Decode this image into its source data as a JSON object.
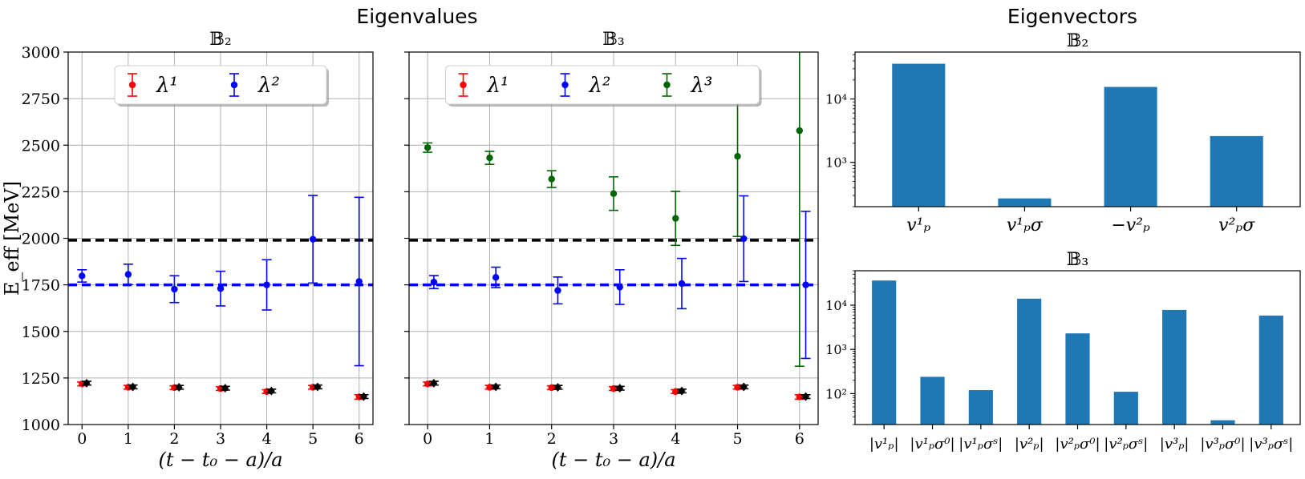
{
  "headings": {
    "left": "Eigenvalues",
    "right": "Eigenvectors"
  },
  "chart_data": [
    {
      "id": "eigenvalues-b2",
      "type": "scatter",
      "title": "𝔹₂",
      "xlabel": "(t − t₀ − a)/a",
      "ylabel": "E_eff [MeV]",
      "xlim": [
        -0.3,
        6.3
      ],
      "ylim": [
        1000,
        3000
      ],
      "x_ticks": [
        0,
        1,
        2,
        3,
        4,
        5,
        6
      ],
      "y_ticks": [
        1000,
        1250,
        1500,
        1750,
        2000,
        2250,
        2500,
        2750,
        3000
      ],
      "grid": true,
      "legend": {
        "placement": "top-center",
        "columns": 2
      },
      "series": [
        {
          "name": "λ¹",
          "color": "#ff0000",
          "x": [
            0,
            1,
            2,
            3,
            4,
            5,
            6
          ],
          "y": [
            1218,
            1200,
            1198,
            1193,
            1177,
            1200,
            1148
          ],
          "err": [
            10,
            10,
            10,
            10,
            10,
            10,
            12
          ]
        },
        {
          "name": "λ²",
          "color": "#0000ff",
          "x": [
            0,
            1,
            2,
            3,
            4,
            5,
            6
          ],
          "y": [
            1798,
            1806,
            1727,
            1730,
            1750,
            1995,
            1768
          ],
          "err": [
            33,
            55,
            72,
            93,
            135,
            235,
            452
          ]
        },
        {
          "color": "#000000",
          "x": [
            0.1,
            1.1,
            2.1,
            3.1,
            4.1,
            5.1,
            6.1
          ],
          "y": [
            1222,
            1202,
            1200,
            1195,
            1180,
            1202,
            1150
          ],
          "err": [
            10,
            10,
            10,
            10,
            10,
            10,
            10
          ]
        }
      ],
      "hlines": [
        {
          "y": 1990,
          "color": "#000000"
        },
        {
          "y": 1750,
          "color": "#0000ff"
        }
      ]
    },
    {
      "id": "eigenvalues-b3",
      "type": "scatter",
      "title": "𝔹₃",
      "xlabel": "(t − t₀ − a)/a",
      "xlim": [
        -0.3,
        6.3
      ],
      "ylim": [
        1000,
        3000
      ],
      "x_ticks": [
        0,
        1,
        2,
        3,
        4,
        5,
        6
      ],
      "y_ticks": [
        1000,
        1250,
        1500,
        1750,
        2000,
        2250,
        2500,
        2750,
        3000
      ],
      "grid": true,
      "legend": {
        "placement": "top-center",
        "columns": 3
      },
      "series": [
        {
          "name": "λ¹",
          "color": "#ff0000",
          "x": [
            0,
            1,
            2,
            3,
            4,
            5,
            6
          ],
          "y": [
            1218,
            1200,
            1198,
            1193,
            1177,
            1200,
            1148
          ],
          "err": [
            10,
            10,
            10,
            10,
            10,
            10,
            12
          ]
        },
        {
          "name": "λ²",
          "color": "#0000ff",
          "x": [
            0.1,
            1.1,
            2.1,
            3.1,
            4.1,
            5.1,
            6.1
          ],
          "y": [
            1765,
            1790,
            1720,
            1738,
            1757,
            1998,
            1750
          ],
          "err": [
            35,
            55,
            72,
            93,
            135,
            230,
            395
          ]
        },
        {
          "name": "λ³",
          "color": "#006400",
          "x": [
            0,
            1,
            2,
            3,
            4,
            5,
            6
          ],
          "y": [
            2487,
            2432,
            2318,
            2240,
            2107,
            2440,
            2578
          ],
          "err": [
            25,
            35,
            45,
            90,
            145,
            430,
            1265
          ]
        },
        {
          "color": "#000000",
          "x": [
            0.1,
            1.1,
            2.1,
            3.1,
            4.1,
            5.1,
            6.1
          ],
          "y": [
            1222,
            1202,
            1200,
            1195,
            1180,
            1202,
            1150
          ],
          "err": [
            10,
            10,
            10,
            10,
            10,
            10,
            10
          ]
        }
      ],
      "hlines": [
        {
          "y": 1990,
          "color": "#000000"
        },
        {
          "y": 1750,
          "color": "#0000ff"
        }
      ]
    },
    {
      "id": "eigenvectors-b2",
      "type": "bar",
      "title": "𝔹₂",
      "scale": "log",
      "ylim": [
        200,
        55000
      ],
      "y_ticks": [
        1000,
        10000
      ],
      "y_tick_labels": [
        "10³",
        "10⁴"
      ],
      "color": "#1f77b4",
      "categories": [
        "v¹ₚ",
        "v¹ₚσ",
        "−v²ₚ",
        "v²ₚσ"
      ],
      "values": [
        36000,
        270,
        15500,
        2600
      ]
    },
    {
      "id": "eigenvectors-b3",
      "type": "bar",
      "title": "𝔹₃",
      "scale": "log",
      "ylim": [
        20,
        60000
      ],
      "y_ticks": [
        100,
        1000,
        10000
      ],
      "y_tick_labels": [
        "10²",
        "10³",
        "10⁴"
      ],
      "color": "#1f77b4",
      "categories": [
        "|v¹ₚ|",
        "|v¹ₚσ⁰|",
        "|v¹ₚσˢ|",
        "|v²ₚ|",
        "|v²ₚσ⁰|",
        "|v²ₚσˢ|",
        "|v³ₚ|",
        "|v³ₚσ⁰|",
        "|v³ₚσˢ|"
      ],
      "values": [
        36000,
        240,
        120,
        14000,
        2300,
        110,
        7800,
        25,
        5800
      ]
    }
  ]
}
